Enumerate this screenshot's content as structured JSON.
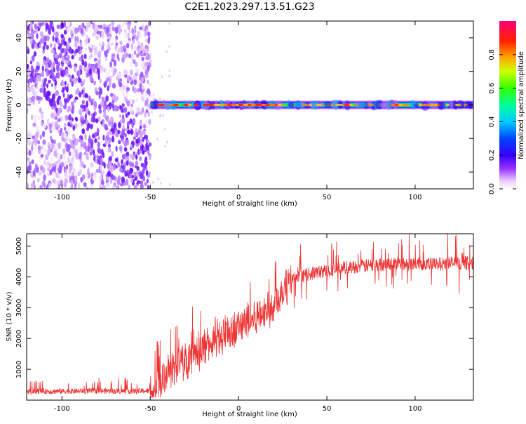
{
  "title": "C2E1.2023.297.13.51.G23",
  "chart_data": [
    {
      "type": "heatmap",
      "xlabel": "Height of straight line (km)",
      "ylabel": "Frequency (Hz)",
      "xlim": [
        -120,
        133
      ],
      "ylim": [
        -50,
        50
      ],
      "xticks": [
        -100,
        -50,
        0,
        50,
        100
      ],
      "yticks": [
        -40,
        -20,
        0,
        20,
        40
      ],
      "noise_region_x": [
        -120,
        -50
      ],
      "signal_region_x": [
        -50,
        133
      ],
      "signal_center_frequency_hz": 0,
      "colorbar": {
        "label": "Normalized spectral amplitude",
        "range": [
          0,
          1
        ],
        "ticks": [
          "0.0",
          "0.2",
          "0.4",
          "0.6",
          "0.8"
        ],
        "colors": [
          "#ffffff",
          "#cc66ff",
          "#6600ff",
          "#0000ff",
          "#00ccff",
          "#00ff66",
          "#66ff00",
          "#ffff00",
          "#ff6600",
          "#ff0000",
          "#ff0066"
        ]
      },
      "grid": false
    },
    {
      "type": "line",
      "xlabel": "Height of straight line (km)",
      "ylabel": "SNR (10 * v/v)",
      "xlim": [
        -120,
        133
      ],
      "ylim": [
        0,
        5400
      ],
      "xticks": [
        -100,
        -50,
        0,
        50,
        100
      ],
      "yticks": [
        1000,
        2000,
        3000,
        4000,
        5000
      ],
      "color": "#ee3333",
      "envelope": {
        "x": [
          -120,
          -100,
          -80,
          -60,
          -50,
          -45,
          -40,
          -30,
          -20,
          -10,
          0,
          10,
          20,
          25,
          30,
          40,
          50,
          60,
          70,
          80,
          90,
          95,
          100,
          110,
          120,
          133
        ],
        "y": [
          280,
          290,
          300,
          290,
          300,
          500,
          900,
          1300,
          1700,
          2000,
          2400,
          2700,
          3100,
          3600,
          3900,
          4100,
          4200,
          4300,
          4350,
          4400,
          4450,
          4400,
          4450,
          4400,
          4450,
          4450
        ]
      },
      "grid": false
    }
  ]
}
